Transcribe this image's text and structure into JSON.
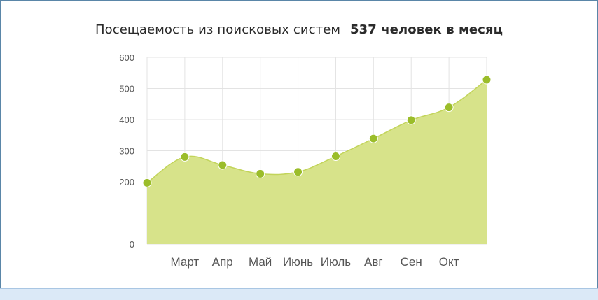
{
  "title": {
    "text": "Посещаемость из поисковых систем",
    "highlight": "537 человек в месяц"
  },
  "chart_data": {
    "type": "area",
    "title": "Посещаемость из поисковых систем  537 человек в месяц",
    "xlabel": "",
    "ylabel": "",
    "ylim": [
      0,
      600
    ],
    "yticks": [
      0,
      100,
      200,
      300,
      400,
      500,
      600
    ],
    "ytick_labels": [
      "0",
      "",
      "200",
      "300",
      "400",
      "500",
      "600"
    ],
    "categories": [
      "",
      "Март",
      "Апр",
      "Май",
      "Июнь",
      "Июль",
      "Авг",
      "Сен",
      "Окт",
      ""
    ],
    "values": [
      197,
      280,
      254,
      226,
      232,
      282,
      339,
      398,
      439,
      528
    ],
    "grid": true,
    "legend": "none",
    "colors": {
      "area": "#d7e38a",
      "line": "#c2d45a",
      "marker": "#9bbd2a",
      "grid": "#e3e3e3"
    }
  }
}
